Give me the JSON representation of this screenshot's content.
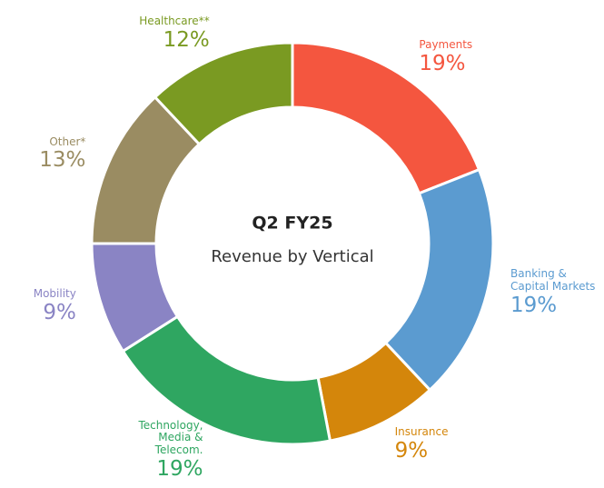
{
  "chart_data": {
    "type": "donut",
    "title": "Q2 FY25",
    "subtitle": "Revenue by Vertical",
    "categories": [
      "Payments",
      "Banking & Capital Markets",
      "Insurance",
      "Technology, Media & Telecom.",
      "Mobility",
      "Other*",
      "Healthcare**"
    ],
    "values": [
      19,
      19,
      9,
      19,
      9,
      13,
      12
    ],
    "value_labels": [
      "19%",
      "19%",
      "9%",
      "19%",
      "9%",
      "13%",
      "12%"
    ],
    "colors": [
      "#f4563f",
      "#5b9bd0",
      "#d4860b",
      "#2fa661",
      "#8a84c4",
      "#9a8c62",
      "#7a9a22"
    ]
  }
}
